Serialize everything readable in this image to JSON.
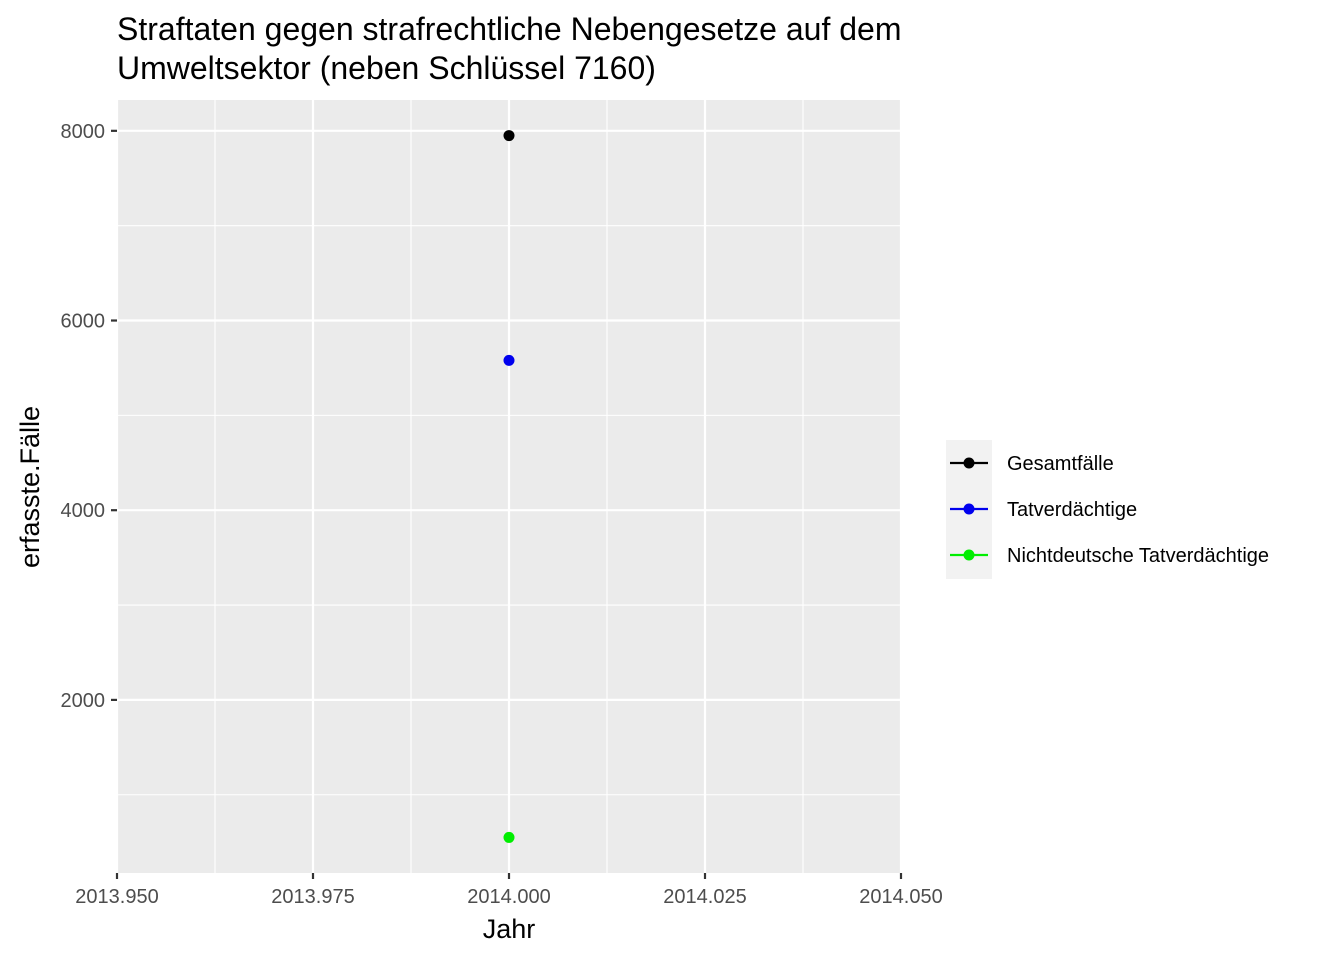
{
  "chart_data": {
    "type": "scatter",
    "title_lines": [
      "Straftaten gegen strafrechtliche Nebengesetze auf dem",
      "Umweltsektor (neben Schlüssel 7160)"
    ],
    "xlabel": "Jahr",
    "ylabel": "erfasste.Fälle",
    "xlim": [
      2013.95,
      2014.05
    ],
    "ylim": [
      175,
      8325
    ],
    "x_ticks": [
      2013.95,
      2013.975,
      2014.0,
      2014.025,
      2014.05
    ],
    "x_tick_labels": [
      "2013.950",
      "2013.975",
      "2014.000",
      "2014.025",
      "2014.050"
    ],
    "y_ticks": [
      2000,
      4000,
      6000,
      8000
    ],
    "y_tick_labels": [
      "2000",
      "4000",
      "6000",
      "8000"
    ],
    "grid": true,
    "legend_position": "right",
    "series": [
      {
        "name": "Gesamtfälle",
        "color": "#000000",
        "x": [
          2014
        ],
        "y": [
          7950
        ]
      },
      {
        "name": "Tatverdächtige",
        "color": "#0000ee",
        "x": [
          2014
        ],
        "y": [
          5580
        ]
      },
      {
        "name": "Nichtdeutsche Tatverdächtige",
        "color": "#00ee00",
        "x": [
          2014
        ],
        "y": [
          550
        ]
      }
    ]
  }
}
